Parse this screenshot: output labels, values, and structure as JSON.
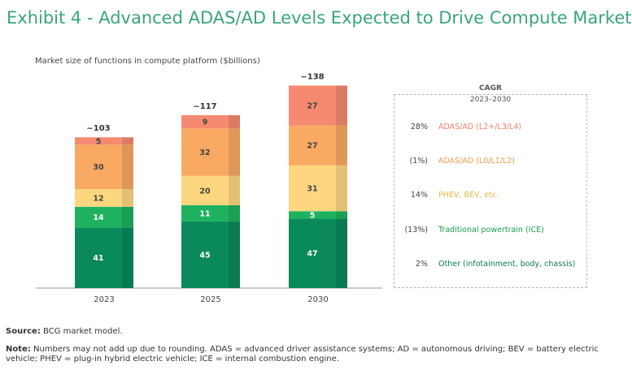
{
  "title": "Exhibit 4 - Advanced ADAS/AD Levels Expected to Drive Compute Market",
  "subtitle": "Market size of functions in compute platform ($billions)",
  "chart_data": {
    "type": "bar",
    "stacked": true,
    "categories": [
      "2023",
      "2025",
      "2030"
    ],
    "totals": [
      "~103",
      "~117",
      "~138"
    ],
    "series": [
      {
        "name": "Other (infotainment, body, chassis)",
        "values": [
          41,
          45,
          47
        ],
        "color": "#0a8a5a",
        "cagr": "2%"
      },
      {
        "name": "Traditional powertrain (ICE)",
        "values": [
          14,
          11,
          5
        ],
        "color": "#1eb25f",
        "cagr": "(13%)"
      },
      {
        "name": "PHEV, BEV, etc.",
        "values": [
          12,
          20,
          31
        ],
        "color": "#fdd77f",
        "cagr": "14%"
      },
      {
        "name": "ADAS/AD (L0/L1/L2)",
        "values": [
          30,
          32,
          27
        ],
        "color": "#f9a961",
        "cagr": "(1%)"
      },
      {
        "name": "ADAS/AD (L2+/L3/L4)",
        "values": [
          5,
          9,
          27
        ],
        "color": "#f58a70",
        "cagr": "28%"
      }
    ],
    "ylim": [
      0,
      140
    ],
    "legend_position": "right"
  },
  "legend": {
    "heading": "CAGR",
    "period": "2023–2030",
    "colors": {
      "ADAS/AD (L2+/L3/L4)": "#f0826a",
      "ADAS/AD (L0/L1/L2)": "#f39a4a",
      "PHEV, BEV, etc.": "#e6b84a",
      "Traditional powertrain (ICE)": "#1a9e4e",
      "Other (infotainment, body, chassis)": "#0a7a50"
    }
  },
  "footer": {
    "source_label": "Source:",
    "source_text": " BCG market model.",
    "note_label": "Note:",
    "note_text": " Numbers may not add up due to rounding. ADAS = advanced driver assistance systems; AD = autonomous driving; BEV = battery electric vehicle; PHEV = plug-in hybrid electric vehicle; ICE = internal combustion engine."
  }
}
